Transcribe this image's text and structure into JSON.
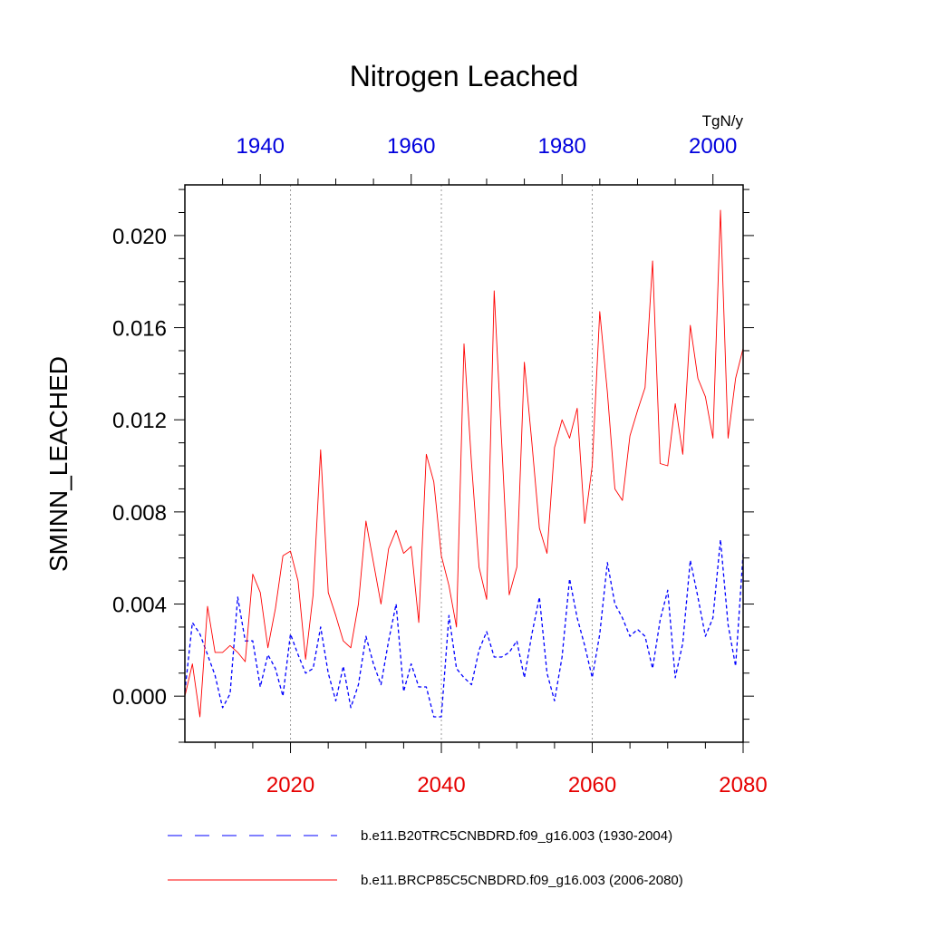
{
  "chart_data": {
    "type": "line",
    "title": "Nitrogen Leached",
    "ylabel": "SMINN_LEACHED",
    "units": "TgN/y",
    "ylim": [
      -0.002,
      0.0222
    ],
    "yticks": [
      "0.000",
      "0.004",
      "0.008",
      "0.012",
      "0.016",
      "0.020"
    ],
    "ytick_values": [
      0,
      0.004,
      0.008,
      0.012,
      0.016,
      0.02
    ],
    "bottom_axis": {
      "range": [
        2006,
        2080
      ],
      "ticks": [
        2020,
        2040,
        2060,
        2080
      ],
      "tick_labels": [
        "2020",
        "2040",
        "2060",
        "2080"
      ],
      "color": "#e60000"
    },
    "top_axis": {
      "range": [
        1930,
        2004
      ],
      "ticks": [
        1940,
        1960,
        1980,
        2000
      ],
      "tick_labels": [
        "1940",
        "1960",
        "1980",
        "2000"
      ],
      "color": "#0000dd"
    },
    "grid": "vertical dotted at major bottom ticks",
    "series": [
      {
        "name": "b.e11.B20TRC5CNBDRD.f09_g16.003 (1930-2004)",
        "color": "#0000ff",
        "style": "dashed",
        "start_year": 1930,
        "values": [
          0.0002,
          0.0032,
          0.0027,
          0.0018,
          0.0009,
          -0.0005,
          0.0001,
          0.0043,
          0.0024,
          0.0024,
          0.0004,
          0.0018,
          0.0012,
          0.0,
          0.0027,
          0.0018,
          0.001,
          0.0012,
          0.003,
          0.001,
          -0.0002,
          0.0013,
          -0.0005,
          0.0005,
          0.0026,
          0.0014,
          0.0005,
          0.0024,
          0.004,
          0.0002,
          0.0014,
          0.0004,
          0.0004,
          -0.0009,
          -0.0009,
          0.0035,
          0.0012,
          0.0008,
          0.0005,
          0.002,
          0.0028,
          0.0017,
          0.0017,
          0.0019,
          0.0024,
          0.0008,
          0.0027,
          0.0043,
          0.001,
          -0.0002,
          0.0017,
          0.0051,
          0.0034,
          0.0022,
          0.0008,
          0.0027,
          0.0058,
          0.004,
          0.0034,
          0.0026,
          0.0029,
          0.0026,
          0.0012,
          0.0033,
          0.0046,
          0.0008,
          0.0023,
          0.0059,
          0.0043,
          0.0026,
          0.0034,
          0.0068,
          0.0031,
          0.0013,
          0.0062
        ]
      },
      {
        "name": "b.e11.BRCP85C5CNBDRD.f09_g16.003 (2006-2080)",
        "color": "#ff0000",
        "style": "solid",
        "start_year": 2006,
        "values": [
          0.0,
          0.0014,
          -0.0009,
          0.0039,
          0.0019,
          0.0019,
          0.0022,
          0.0019,
          0.0015,
          0.0053,
          0.0045,
          0.0021,
          0.0038,
          0.0061,
          0.0063,
          0.005,
          0.0016,
          0.0044,
          0.0107,
          0.0045,
          0.0035,
          0.0024,
          0.0021,
          0.004,
          0.0076,
          0.0058,
          0.004,
          0.0064,
          0.0072,
          0.0062,
          0.0065,
          0.0032,
          0.0105,
          0.0093,
          0.0061,
          0.0048,
          0.003,
          0.0153,
          0.0101,
          0.0056,
          0.0042,
          0.0176,
          0.011,
          0.0044,
          0.0056,
          0.0145,
          0.011,
          0.0073,
          0.0062,
          0.0108,
          0.012,
          0.0112,
          0.0125,
          0.0075,
          0.01,
          0.0167,
          0.0132,
          0.009,
          0.0085,
          0.0113,
          0.0124,
          0.0134,
          0.0189,
          0.0101,
          0.01,
          0.0127,
          0.0105,
          0.0161,
          0.0138,
          0.013,
          0.0112,
          0.0211,
          0.0112,
          0.0138,
          0.0151
        ]
      }
    ]
  }
}
